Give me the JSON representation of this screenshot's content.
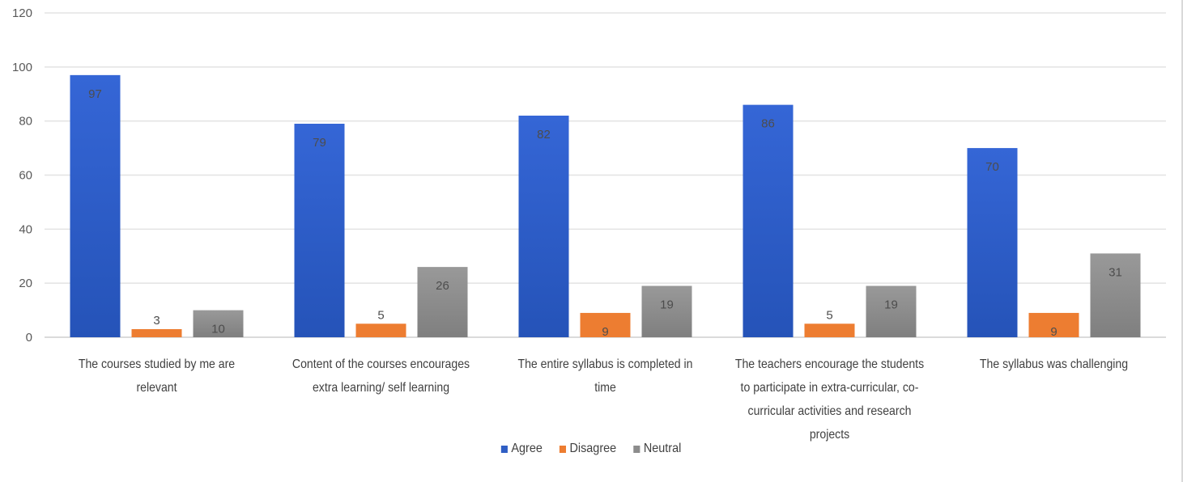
{
  "chart_data": {
    "type": "bar",
    "categories": [
      "The courses studied by me are relevant",
      "Content of the courses encourages extra learning/ self learning",
      "The entire syllabus is completed in time",
      "The teachers encourage the students to participate in extra-curricular, co-curricular activities and research projects",
      "The syllabus was challenging"
    ],
    "series": [
      {
        "name": "Agree",
        "values": [
          97,
          79,
          82,
          86,
          70
        ],
        "color": "#2f5ec4"
      },
      {
        "name": "Disagree",
        "values": [
          3,
          5,
          9,
          5,
          9
        ],
        "color": "#ed7d31"
      },
      {
        "name": "Neutral",
        "values": [
          10,
          26,
          19,
          19,
          31
        ],
        "color": "#8c8c8c"
      }
    ],
    "ylim": [
      0,
      120
    ],
    "yticks": [
      0,
      20,
      40,
      60,
      80,
      100,
      120
    ],
    "grid": true,
    "legend_position": "bottom"
  }
}
